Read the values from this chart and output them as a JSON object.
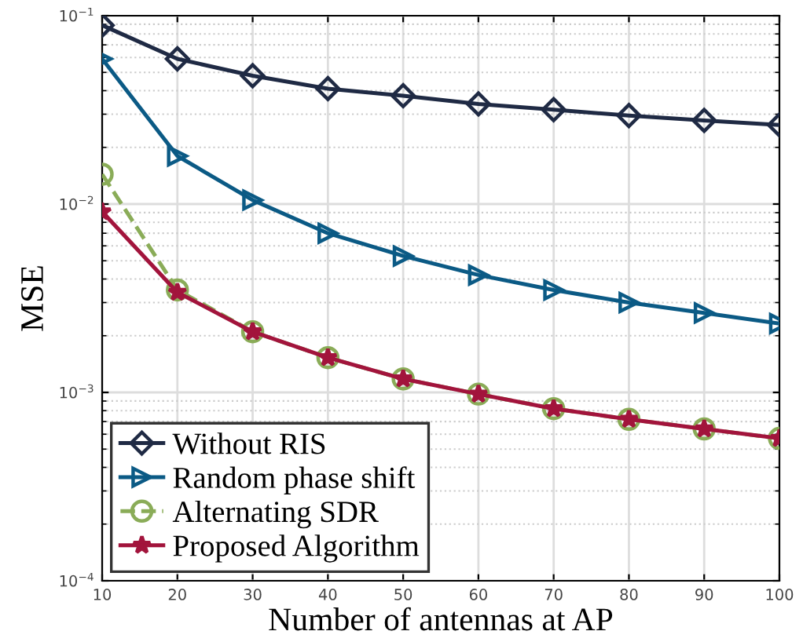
{
  "chart_data": {
    "type": "line",
    "xlabel": "Number of antennas at AP",
    "ylabel": "MSE",
    "log": "y",
    "grid": true,
    "legend": "bottom left",
    "x": [
      10,
      20,
      30,
      40,
      50,
      60,
      70,
      80,
      90,
      100
    ],
    "xlim": [
      10,
      100
    ],
    "xticks": [
      10,
      20,
      30,
      40,
      50,
      60,
      70,
      80,
      90,
      100
    ],
    "ylim": [
      0.0001,
      0.1
    ],
    "yticks": [
      {
        "value": 0.0001,
        "label": "10$^{−4}$"
      },
      {
        "value": 0.001,
        "label": "10$^{−3}$"
      },
      {
        "value": 0.01,
        "label": "10$^{−2}$"
      },
      {
        "value": 0.1,
        "label": "10$^{−1}$"
      }
    ],
    "series": [
      {
        "name": "Without RIS",
        "color": "#1f2a44",
        "marker": "diamond",
        "line_style": "solid",
        "values": [
          0.089,
          0.059,
          0.048,
          0.041,
          0.0376,
          0.034,
          0.0317,
          0.0295,
          0.0278,
          0.0263
        ]
      },
      {
        "name": "Random phase shift",
        "color": "#0b5a85",
        "marker": "triangle",
        "line_style": "solid",
        "values": [
          0.059,
          0.018,
          0.0105,
          0.007,
          0.0053,
          0.0042,
          0.0035,
          0.003,
          0.00264,
          0.00232
        ]
      },
      {
        "name": "Alternating SDR",
        "color": "#8aac58",
        "marker": "circle",
        "line_style": "dashed",
        "values": [
          0.0144,
          0.0035,
          0.0021,
          0.00153,
          0.00118,
          0.00098,
          0.00082,
          0.00072,
          0.00064,
          0.00057
        ]
      },
      {
        "name": "Proposed Algorithm",
        "color": "#a2143c",
        "marker": "star",
        "line_style": "solid",
        "values": [
          0.0091,
          0.0034,
          0.0021,
          0.00153,
          0.00118,
          0.00098,
          0.00082,
          0.00072,
          0.00064,
          0.00057
        ]
      }
    ]
  }
}
